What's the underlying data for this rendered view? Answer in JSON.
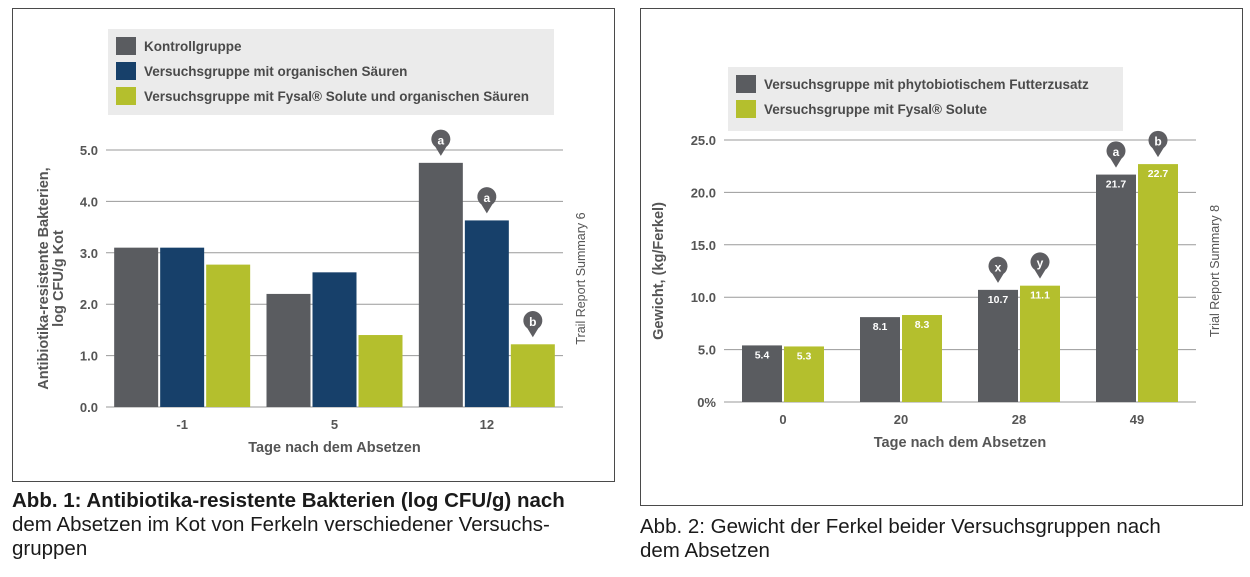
{
  "colors": {
    "dark_gray": "#5a5c60",
    "navy": "#17406a",
    "lime": "#b4bf2d",
    "legend_bg": "#ebebeb",
    "marker": "#5e5e62"
  },
  "chart_data": [
    {
      "type": "bar",
      "title": "",
      "xlabel": "Tage nach dem Absetzen",
      "ylabel": "Antibiotika-resistente Bakterien, log CFU/g Kot",
      "ylabel_lines": [
        "Antibiotika-resistente Bakterien,",
        "log CFU/g Kot"
      ],
      "side_label": "Trail Report Summary 6",
      "ylim": [
        0,
        5
      ],
      "yticks": [
        0,
        1,
        2,
        3,
        4,
        5
      ],
      "ytick_labels": [
        "0.0",
        "1.0",
        "2.0",
        "3.0",
        "4.0",
        "5.0"
      ],
      "grid": true,
      "legend_position": "top",
      "categories": [
        "-1",
        "5",
        "12"
      ],
      "series": [
        {
          "name": "Kontrollgruppe",
          "color": "#5a5c60",
          "values": [
            3.1,
            2.2,
            4.75
          ],
          "markers": [
            "",
            "",
            "a"
          ]
        },
        {
          "name": "Versuchsgruppe mit organischen Säuren",
          "color": "#17406a",
          "values": [
            3.1,
            2.62,
            3.63
          ],
          "markers": [
            "",
            "",
            "a"
          ]
        },
        {
          "name": "Versuchsgruppe mit Fysal® Solute und organischen Säuren",
          "color": "#b4bf2d",
          "values": [
            2.77,
            1.4,
            1.22
          ],
          "markers": [
            "",
            "",
            "b"
          ]
        }
      ]
    },
    {
      "type": "bar",
      "title": "",
      "xlabel": "Tage nach dem Absetzen",
      "ylabel": "Gewicht, (kg/Ferkel)",
      "side_label": "Trial Report Summary 8",
      "ylim": [
        0,
        25
      ],
      "yticks": [
        0,
        5,
        10,
        15,
        20,
        25
      ],
      "ytick_labels": [
        "0%",
        "5.0",
        "10.0",
        "15.0",
        "20.0",
        "25.0"
      ],
      "grid": true,
      "legend_position": "top",
      "categories": [
        "0",
        "20",
        "28",
        "49"
      ],
      "series": [
        {
          "name": "Versuchsgruppe mit phytobiotischem Futterzusatz",
          "color": "#5a5c60",
          "values": [
            5.4,
            8.1,
            10.7,
            21.7
          ],
          "labels": [
            "5.4",
            "8.1",
            "10.7",
            "21.7"
          ],
          "markers": [
            "",
            "",
            "x",
            "a"
          ]
        },
        {
          "name": "Versuchsgruppe mit Fysal® Solute",
          "color": "#b4bf2d",
          "values": [
            5.3,
            8.3,
            11.1,
            22.7
          ],
          "labels": [
            "5.3",
            "8.3",
            "11.1",
            "22.7"
          ],
          "markers": [
            "",
            "",
            "y",
            "b"
          ]
        }
      ]
    }
  ],
  "captions": [
    {
      "prefix": "Abb. 1: Antibiotika-resistente Bakterien (log CFU/g) nach",
      "line2": "dem Absetzen im Kot von Ferkeln verschiedener Versuchs-",
      "line3": "gruppen"
    },
    {
      "prefix": "Abb. 2: Gewicht der Ferkel beider Versuchsgruppen nach",
      "line2": "dem Absetzen"
    }
  ]
}
